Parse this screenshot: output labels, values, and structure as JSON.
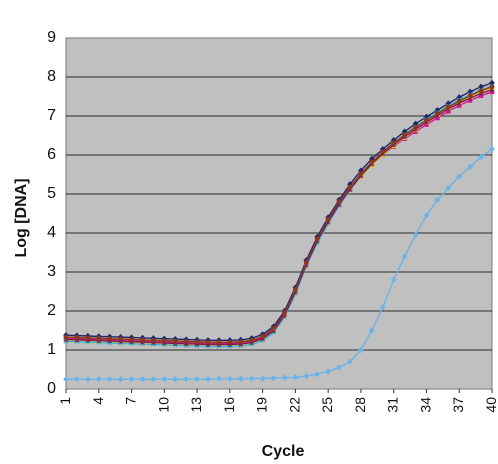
{
  "chart_data": {
    "type": "line",
    "title": "",
    "xlabel": "Cycle",
    "ylabel": "Log [DNA]",
    "xlim": [
      1,
      40
    ],
    "ylim": [
      0,
      9
    ],
    "yticks": [
      0,
      1,
      2,
      3,
      4,
      5,
      6,
      7,
      8,
      9
    ],
    "xticks": [
      1,
      4,
      7,
      10,
      13,
      16,
      19,
      22,
      25,
      28,
      31,
      34,
      37,
      40
    ],
    "grid": "horizontal",
    "legend": "none",
    "plot_background": "#c0c0c0",
    "cycles": [
      1,
      2,
      3,
      4,
      5,
      6,
      7,
      8,
      9,
      10,
      11,
      12,
      13,
      14,
      15,
      16,
      17,
      18,
      19,
      20,
      21,
      22,
      23,
      24,
      25,
      26,
      27,
      28,
      29,
      30,
      31,
      32,
      33,
      34,
      35,
      36,
      37,
      38,
      39,
      40
    ],
    "series": [
      {
        "color": "#1f2a6b",
        "marker": "diamond",
        "values": [
          1.38,
          1.37,
          1.36,
          1.35,
          1.34,
          1.33,
          1.32,
          1.31,
          1.3,
          1.29,
          1.28,
          1.27,
          1.26,
          1.25,
          1.25,
          1.25,
          1.26,
          1.3,
          1.4,
          1.6,
          2.0,
          2.6,
          3.3,
          3.9,
          4.4,
          4.85,
          5.25,
          5.6,
          5.9,
          6.15,
          6.38,
          6.6,
          6.8,
          6.98,
          7.15,
          7.32,
          7.48,
          7.62,
          7.75,
          7.85
        ]
      },
      {
        "color": "#d81b8c",
        "marker": "square",
        "values": [
          1.3,
          1.29,
          1.28,
          1.27,
          1.26,
          1.25,
          1.24,
          1.23,
          1.22,
          1.21,
          1.2,
          1.19,
          1.18,
          1.17,
          1.17,
          1.17,
          1.18,
          1.22,
          1.32,
          1.52,
          1.92,
          2.52,
          3.22,
          3.82,
          4.32,
          4.75,
          5.12,
          5.45,
          5.75,
          6.0,
          6.22,
          6.42,
          6.6,
          6.78,
          6.95,
          7.12,
          7.27,
          7.4,
          7.52,
          7.62
        ]
      },
      {
        "color": "#e8d21a",
        "marker": "triangle",
        "values": [
          1.25,
          1.24,
          1.23,
          1.22,
          1.21,
          1.2,
          1.19,
          1.18,
          1.17,
          1.16,
          1.15,
          1.14,
          1.13,
          1.12,
          1.12,
          1.12,
          1.13,
          1.17,
          1.27,
          1.47,
          1.87,
          2.47,
          3.17,
          3.77,
          4.27,
          4.72,
          5.1,
          5.44,
          5.74,
          6.0,
          6.24,
          6.45,
          6.65,
          6.84,
          7.02,
          7.19,
          7.35,
          7.49,
          7.62,
          7.72
        ]
      },
      {
        "color": "#3fb3d6",
        "marker": "x",
        "values": [
          1.22,
          1.21,
          1.2,
          1.19,
          1.18,
          1.17,
          1.16,
          1.15,
          1.14,
          1.13,
          1.12,
          1.11,
          1.1,
          1.09,
          1.09,
          1.09,
          1.1,
          1.14,
          1.24,
          1.44,
          1.84,
          2.44,
          3.14,
          3.74,
          4.24,
          4.7,
          5.1,
          5.46,
          5.77,
          6.05,
          6.3,
          6.52,
          6.72,
          6.91,
          7.09,
          7.26,
          7.41,
          7.55,
          7.67,
          7.77
        ]
      },
      {
        "color": "#7a1e5c",
        "marker": "star",
        "values": [
          1.27,
          1.26,
          1.25,
          1.24,
          1.23,
          1.22,
          1.21,
          1.2,
          1.19,
          1.18,
          1.17,
          1.16,
          1.15,
          1.14,
          1.14,
          1.14,
          1.15,
          1.19,
          1.29,
          1.49,
          1.89,
          2.49,
          3.19,
          3.79,
          4.29,
          4.73,
          5.12,
          5.47,
          5.77,
          6.03,
          6.26,
          6.47,
          6.66,
          6.84,
          7.01,
          7.18,
          7.33,
          7.46,
          7.58,
          7.68
        ]
      },
      {
        "color": "#8b3a1a",
        "marker": "circle",
        "values": [
          1.33,
          1.32,
          1.31,
          1.3,
          1.29,
          1.28,
          1.27,
          1.26,
          1.25,
          1.24,
          1.23,
          1.22,
          1.21,
          1.2,
          1.2,
          1.2,
          1.21,
          1.25,
          1.35,
          1.55,
          1.95,
          2.55,
          3.25,
          3.85,
          4.35,
          4.8,
          5.18,
          5.52,
          5.82,
          6.08,
          6.31,
          6.52,
          6.71,
          6.89,
          7.06,
          7.23,
          7.38,
          7.52,
          7.65,
          7.75
        ]
      },
      {
        "color": "#6ab4e8",
        "marker": "diamond",
        "values": [
          0.25,
          0.25,
          0.25,
          0.25,
          0.25,
          0.25,
          0.25,
          0.25,
          0.25,
          0.25,
          0.25,
          0.25,
          0.25,
          0.25,
          0.26,
          0.26,
          0.26,
          0.27,
          0.27,
          0.28,
          0.29,
          0.3,
          0.33,
          0.38,
          0.45,
          0.55,
          0.7,
          1.0,
          1.5,
          2.1,
          2.8,
          3.4,
          3.95,
          4.45,
          4.85,
          5.15,
          5.45,
          5.7,
          5.95,
          6.15
        ]
      }
    ]
  }
}
